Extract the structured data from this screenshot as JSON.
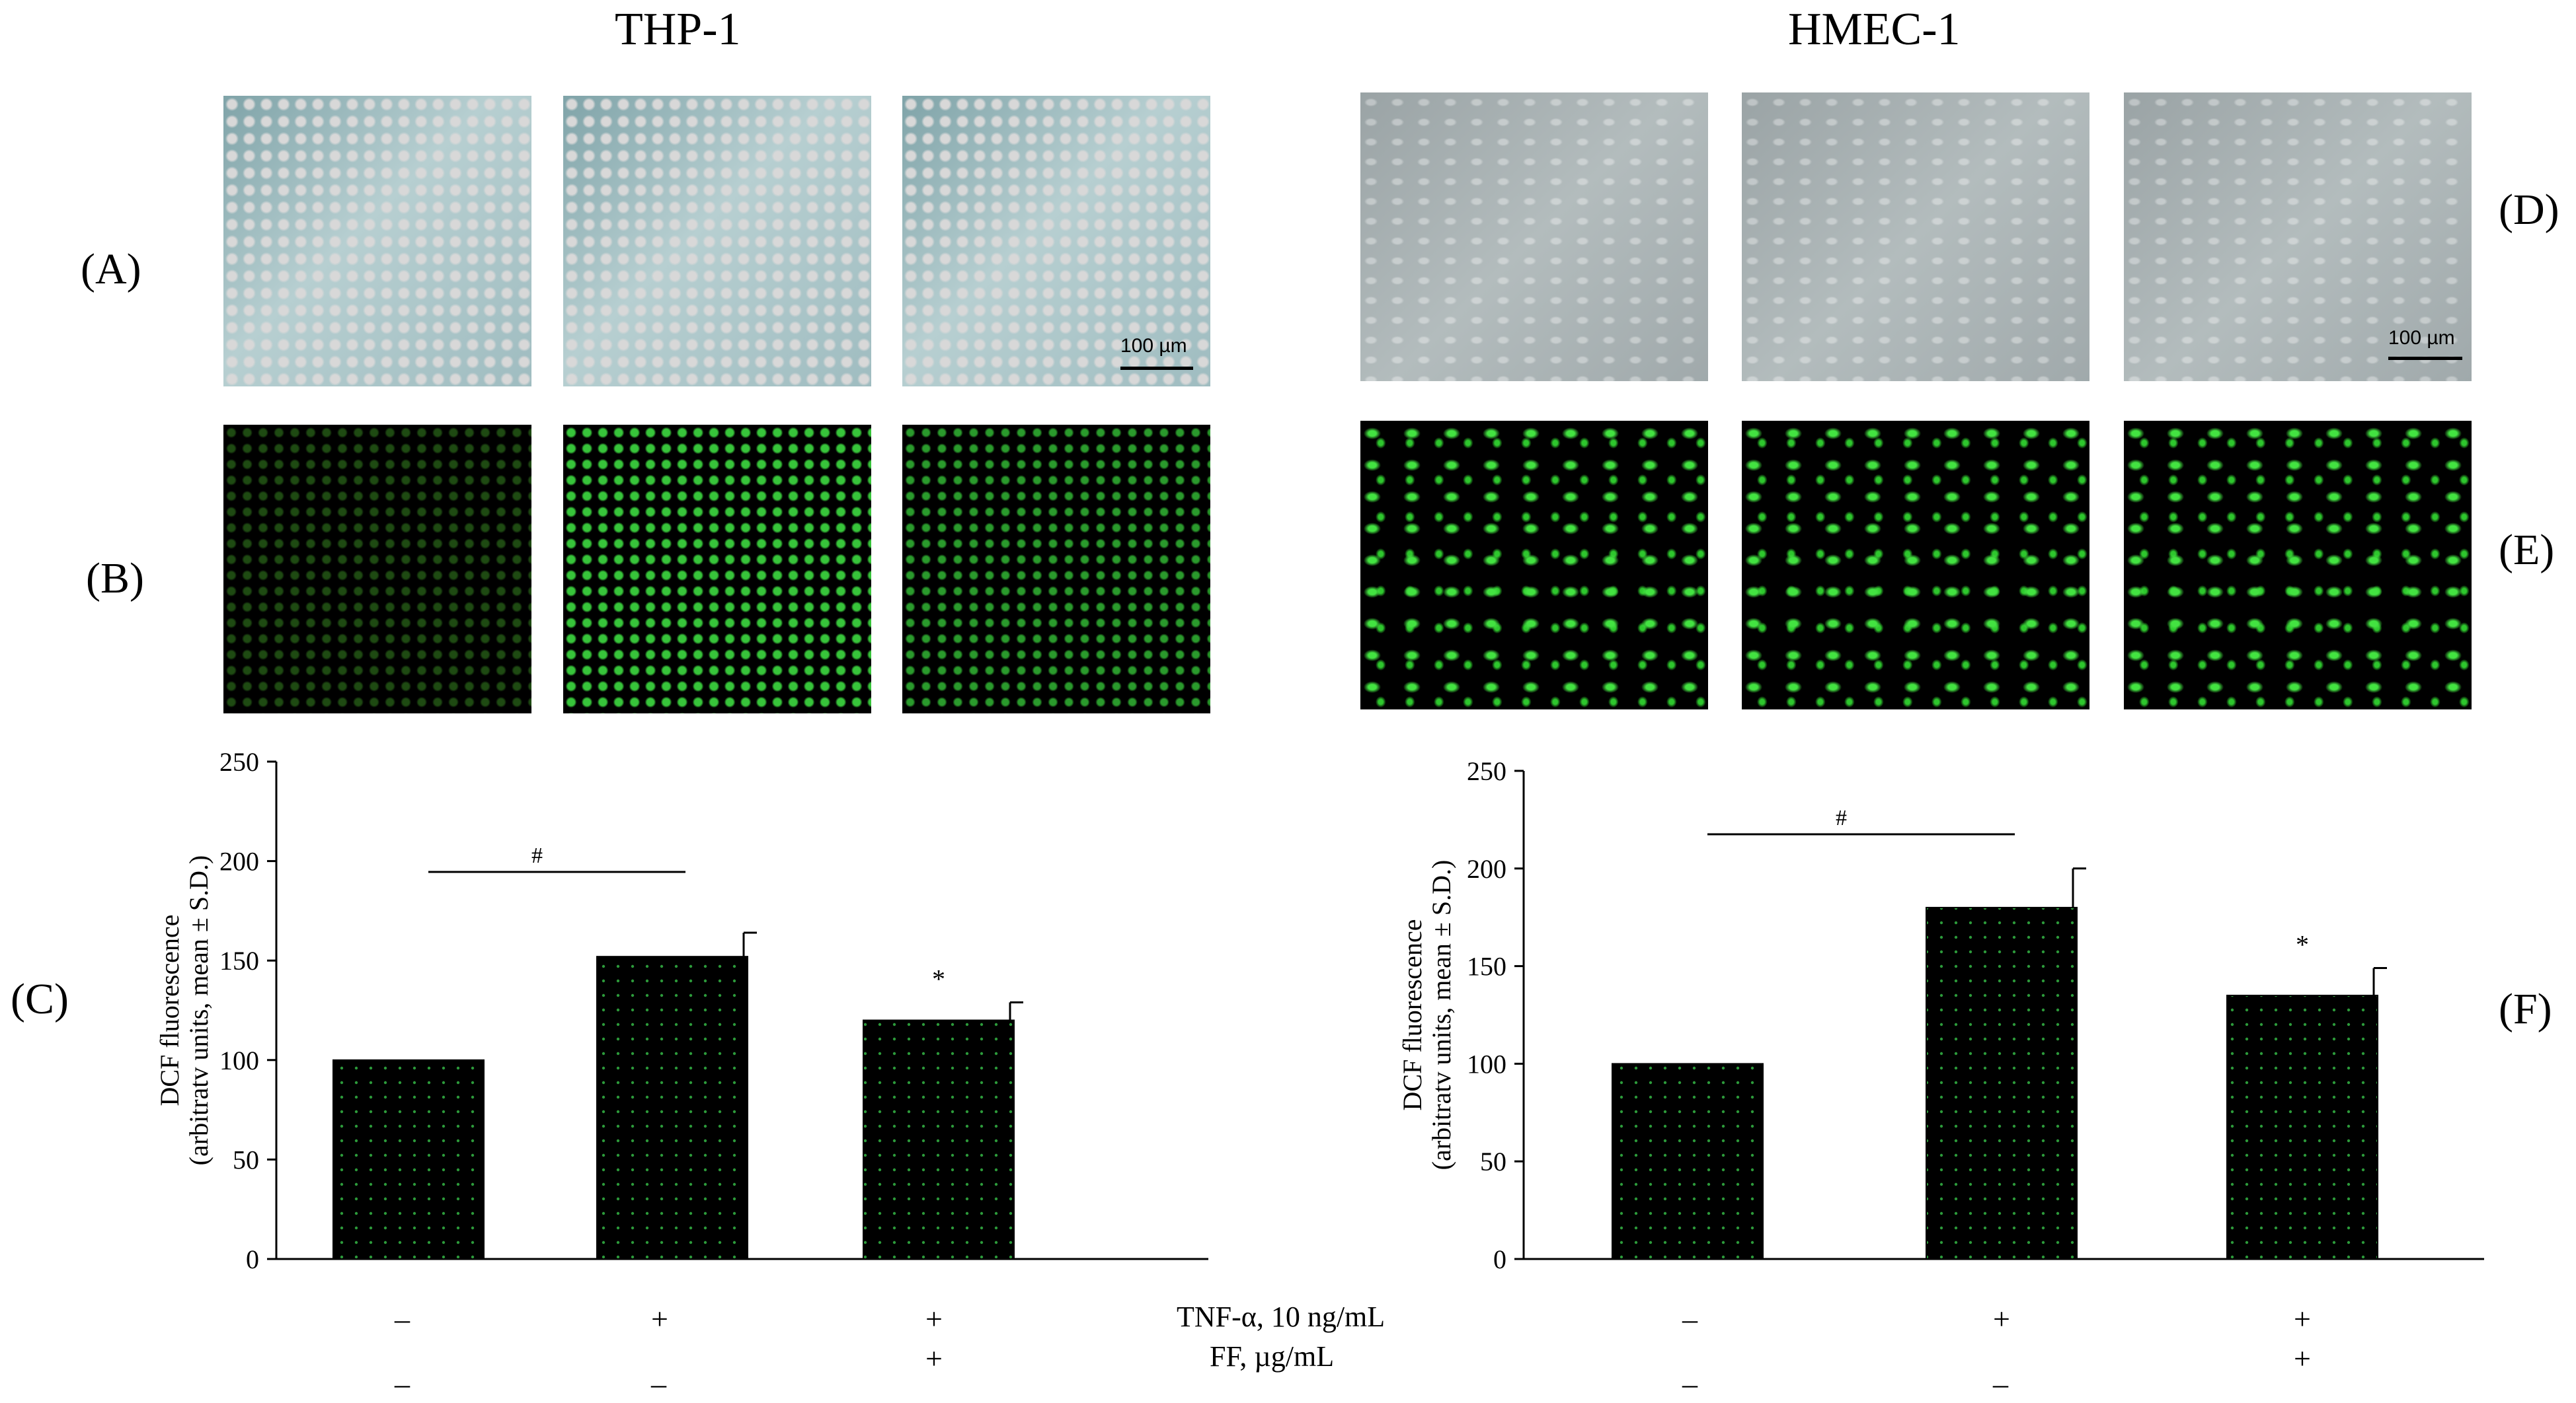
{
  "titles": {
    "left": "THP-1",
    "right": "HMEC-1"
  },
  "panel_labels": {
    "a": "(A)",
    "b": "(B)",
    "c": "(C)",
    "d": "(D)",
    "e": "(E)",
    "f": "(F)"
  },
  "scale_bar": "100 µm",
  "conditions": {
    "tnf_label": "TNF-α, 10 ng/mL",
    "ff_label": "FF, µg/mL",
    "tnf": [
      "–",
      "+",
      "+"
    ],
    "ff": [
      "–",
      "–",
      "+"
    ]
  },
  "chart_data": [
    {
      "type": "bar",
      "panel": "(C)",
      "cell_line": "THP-1",
      "categories": [
        "",
        "",
        ""
      ],
      "values": [
        100,
        152,
        120
      ],
      "errors": [
        0,
        12,
        9
      ],
      "ylabel": "DCF fluorescence",
      "ylabel2": "(arbitratv units, mean ± S.D.)",
      "ylim": [
        0,
        250
      ],
      "yticks": [
        0,
        50,
        100,
        150,
        200,
        250
      ],
      "significance": {
        "bracket_symbol": "#",
        "bracket_from": 0,
        "bracket_to": 1,
        "star_symbol": "*",
        "star_on": 2
      },
      "bar_color": "#000000"
    },
    {
      "type": "bar",
      "panel": "(F)",
      "cell_line": "HMEC-1",
      "categories": [
        "",
        "",
        ""
      ],
      "values": [
        100,
        180,
        135
      ],
      "errors": [
        0,
        20,
        14
      ],
      "ylabel": "DCF fluorescence",
      "ylabel2": "(arbitratv units, mean ± S.D.)",
      "ylim": [
        0,
        250
      ],
      "yticks": [
        0,
        50,
        100,
        150,
        200,
        250
      ],
      "significance": {
        "bracket_symbol": "#",
        "bracket_from": 0,
        "bracket_to": 1,
        "star_symbol": "*",
        "star_on": 2
      },
      "bar_color": "#000000"
    }
  ]
}
